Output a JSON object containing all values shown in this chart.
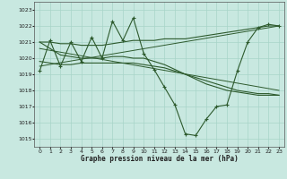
{
  "title": "Graphe pression niveau de la mer (hPa)",
  "bg_color": "#c8e8e0",
  "grid_color": "#a8d4c8",
  "line_color": "#2d5a2d",
  "xlim": [
    -0.5,
    23.5
  ],
  "ylim": [
    1014.5,
    1023.5
  ],
  "yticks": [
    1015,
    1016,
    1017,
    1018,
    1019,
    1020,
    1021,
    1022,
    1023
  ],
  "xticks": [
    0,
    1,
    2,
    3,
    4,
    5,
    6,
    7,
    8,
    9,
    10,
    11,
    12,
    13,
    14,
    15,
    16,
    17,
    18,
    19,
    20,
    21,
    22,
    23
  ],
  "series_zigzag": [
    1019.2,
    1021.1,
    1019.5,
    1021.0,
    1019.8,
    1021.3,
    1020.0,
    1022.3,
    1021.1,
    1022.5,
    1020.3,
    1019.3,
    1018.2,
    1017.1,
    1015.3,
    1015.2,
    1016.2,
    1017.0,
    1017.1,
    1019.2,
    1021.0,
    1021.9,
    1022.1,
    1022.0
  ],
  "series_smooth": [
    1021.0,
    1020.6,
    1020.2,
    1020.1,
    1020.0,
    1020.0,
    1020.0,
    1020.1,
    1020.1,
    1020.0,
    1020.0,
    1019.8,
    1019.6,
    1019.3,
    1019.0,
    1018.7,
    1018.4,
    1018.2,
    1018.0,
    1017.9,
    1017.8,
    1017.7,
    1017.7,
    1017.7
  ],
  "series_upper_env": [
    1021.0,
    1021.0,
    1020.9,
    1020.9,
    1020.8,
    1020.8,
    1020.8,
    1020.9,
    1021.0,
    1021.1,
    1021.1,
    1021.1,
    1021.2,
    1021.2,
    1021.2,
    1021.3,
    1021.4,
    1021.5,
    1021.6,
    1021.7,
    1021.8,
    1021.9,
    1022.0,
    1022.0
  ],
  "series_lower_env": [
    1019.8,
    1019.7,
    1019.6,
    1019.6,
    1019.7,
    1019.7,
    1019.7,
    1019.7,
    1019.7,
    1019.7,
    1019.6,
    1019.5,
    1019.4,
    1019.2,
    1019.0,
    1018.8,
    1018.6,
    1018.4,
    1018.2,
    1018.0,
    1017.9,
    1017.8,
    1017.8,
    1017.7
  ],
  "trend_x0": 0,
  "trend_x1": 23,
  "trend_upper_y0": 1019.5,
  "trend_upper_y1": 1022.0,
  "trend_lower_y0": 1020.6,
  "trend_lower_y1": 1018.0
}
